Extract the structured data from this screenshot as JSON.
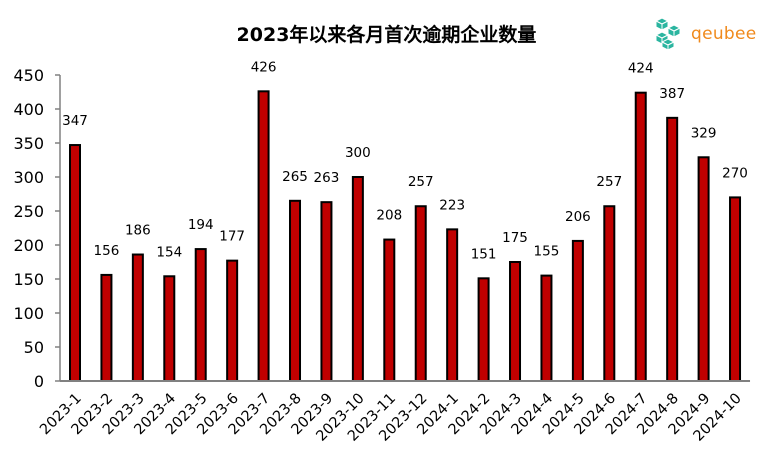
{
  "chart_data": {
    "type": "bar",
    "title": "2023年以来各月首次逾期企业数量",
    "xlabel": "",
    "ylabel": "",
    "ylim": [
      0,
      450
    ],
    "yticks": [
      0,
      50,
      100,
      150,
      200,
      250,
      300,
      350,
      400,
      450
    ],
    "grid": false,
    "legend": null,
    "categories": [
      "2023-1",
      "2023-2",
      "2023-3",
      "2023-4",
      "2023-5",
      "2023-6",
      "2023-7",
      "2023-8",
      "2023-9",
      "2023-10",
      "2023-11",
      "2023-12",
      "2024-1",
      "2024-2",
      "2024-3",
      "2024-4",
      "2024-5",
      "2024-6",
      "2024-7",
      "2024-8",
      "2024-9",
      "2024-10"
    ],
    "values": [
      347,
      156,
      186,
      154,
      194,
      177,
      426,
      265,
      263,
      300,
      208,
      257,
      223,
      151,
      175,
      155,
      206,
      257,
      424,
      387,
      329,
      270
    ],
    "data_labels": true,
    "bar_color": "#c00000",
    "bar_edge_color": "#000000",
    "axis_color": "#808080"
  },
  "logo": {
    "text": "qeubee",
    "icon": "cube-cluster-icon",
    "icon_color": "#2bb5a0",
    "text_color": "#f08a1c"
  }
}
